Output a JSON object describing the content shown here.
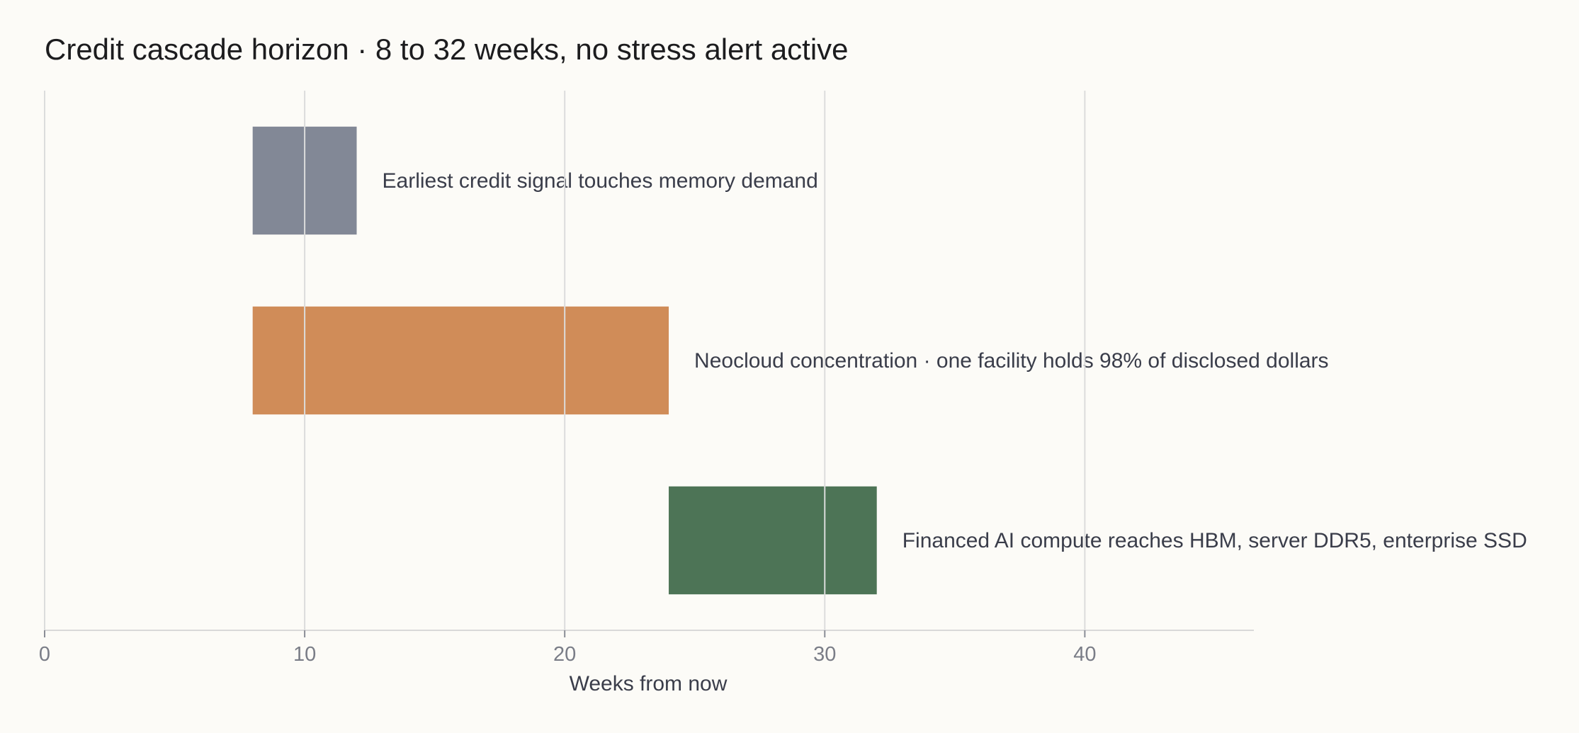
{
  "chart_data": {
    "type": "bar",
    "orientation": "horizontal",
    "title": "Credit cascade horizon · 8 to 32 weeks, no stress alert active",
    "xlabel": "Weeks from now",
    "xlim": [
      0,
      46.5
    ],
    "xticks": [
      0,
      10,
      20,
      30,
      40
    ],
    "grid": "vertical",
    "bars": [
      {
        "label": "Earliest credit signal touches memory demand",
        "start": 8,
        "end": 12,
        "color": "#828896"
      },
      {
        "label": "Neocloud concentration · one facility holds 98% of disclosed dollars",
        "start": 8,
        "end": 24,
        "color": "#d08c58"
      },
      {
        "label": "Financed AI compute reaches HBM, server DDR5, enterprise SSD",
        "start": 24,
        "end": 32,
        "color": "#4d7456"
      }
    ]
  }
}
